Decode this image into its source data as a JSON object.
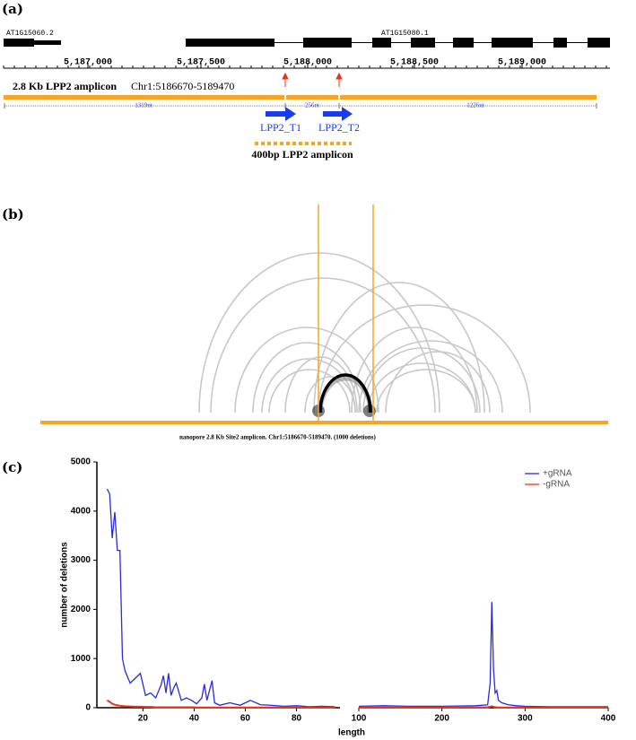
{
  "panel_a": {
    "label": "(a)",
    "genes": [
      "AT1G15060.2",
      "AT1G15080.1"
    ],
    "ruler": [
      "5,187,000",
      "5,187,500",
      "5,188,000",
      "5,188,500",
      "5,189,000"
    ],
    "amplicon_title": "2.8 Kb LPP2 amplicon",
    "amplicon_coords": "Chr1:5186670-5189470",
    "segments": [
      "1319nt",
      "256nt",
      "1226nt"
    ],
    "targets": [
      "LPP2_T1",
      "LPP2_T2"
    ],
    "short_amplicon": "400bp LPP2 amplicon"
  },
  "panel_b": {
    "label": "(b)",
    "caption": "nanopore 2.8 Kb Site2 amplicon. Chr1:5186670-5189470.  (1000 deletions)"
  },
  "panel_c": {
    "label": "(c)"
  },
  "chart_data": [
    {
      "type": "line",
      "ylabel": "number of deletions",
      "x": [
        6,
        7,
        8,
        9,
        10,
        11,
        12,
        13,
        15,
        17,
        19,
        21,
        23,
        25,
        27,
        28,
        29,
        30,
        31,
        32,
        33,
        35,
        37,
        39,
        41,
        43,
        44,
        45,
        47,
        48,
        50,
        54,
        58,
        62,
        66,
        70,
        75,
        80,
        85,
        90,
        95
      ],
      "series": [
        {
          "name": "+gRNA",
          "color": "#2b2bd9",
          "values": [
            4450,
            4350,
            3450,
            3980,
            3200,
            3200,
            1000,
            750,
            500,
            600,
            700,
            250,
            300,
            200,
            450,
            650,
            300,
            700,
            250,
            400,
            500,
            150,
            200,
            150,
            80,
            200,
            480,
            150,
            550,
            100,
            50,
            100,
            50,
            150,
            60,
            50,
            30,
            40,
            20,
            30,
            20
          ]
        },
        {
          "name": "-gRNA",
          "color": "#e8321e",
          "values": [
            150,
            120,
            80,
            60,
            50,
            40,
            35,
            30,
            25,
            20,
            20,
            15,
            15,
            10,
            10,
            10,
            10,
            10,
            10,
            10,
            10,
            10,
            10,
            10,
            5,
            5,
            5,
            5,
            5,
            5,
            5,
            5,
            5,
            5,
            5,
            5,
            5,
            5,
            5,
            5,
            5
          ]
        }
      ],
      "xlim": [
        2,
        97
      ],
      "xticks": [
        20,
        40,
        60,
        80
      ],
      "ylim": [
        0,
        5000
      ],
      "yticks": [
        0,
        1000,
        2000,
        3000,
        4000,
        5000
      ]
    },
    {
      "type": "line",
      "xlabel": "length",
      "x": [
        100,
        130,
        160,
        200,
        240,
        255,
        258,
        260,
        262,
        264,
        266,
        268,
        272,
        276,
        280,
        290,
        300,
        330,
        400
      ],
      "series": [
        {
          "color": "#2b2bd9",
          "values": [
            30,
            40,
            30,
            30,
            40,
            60,
            500,
            2150,
            800,
            300,
            350,
            150,
            100,
            80,
            60,
            40,
            30,
            20,
            20
          ]
        },
        {
          "color": "#e8321e",
          "values": [
            5,
            5,
            5,
            5,
            5,
            10,
            20,
            30,
            20,
            10,
            10,
            5,
            5,
            5,
            5,
            5,
            5,
            5,
            5
          ]
        }
      ],
      "xlim": [
        100,
        400
      ],
      "xticks": [
        100,
        200,
        300,
        400
      ],
      "ylim": [
        0,
        5000
      ]
    }
  ]
}
